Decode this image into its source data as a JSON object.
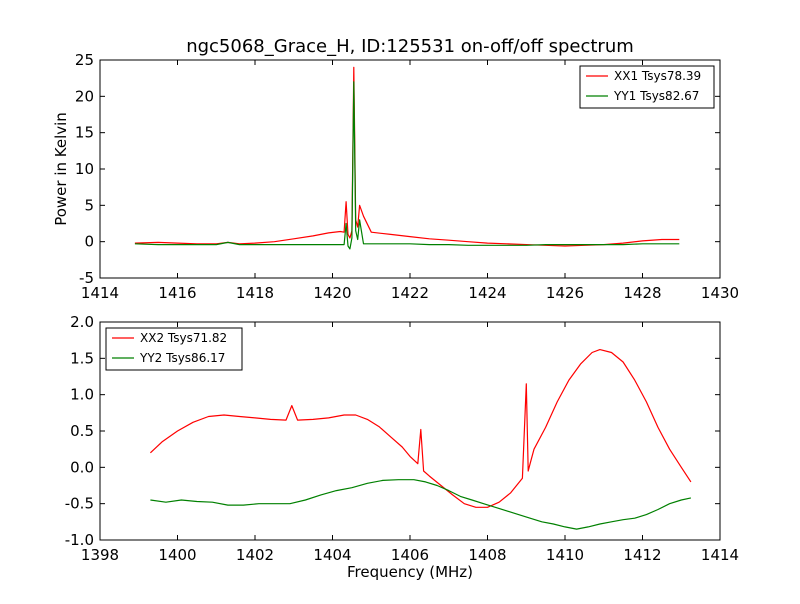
{
  "chart_data": [
    {
      "type": "line",
      "title": "ngc5068_Grace_H, ID:125531 on-off/off spectrum",
      "xlabel": "",
      "ylabel": "Power in Kelvin",
      "xlim": [
        1414,
        1430
      ],
      "ylim": [
        -5,
        25
      ],
      "xticks": [
        1414,
        1416,
        1418,
        1420,
        1422,
        1424,
        1426,
        1428,
        1430
      ],
      "yticks": [
        -5,
        0,
        5,
        10,
        15,
        20,
        25
      ],
      "legend_position": "top-right",
      "grid": false,
      "series": [
        {
          "name": "XX1 Tsys78.39",
          "color": "#ff0000",
          "x": [
            1414.9,
            1415.5,
            1416.0,
            1416.5,
            1417.0,
            1417.3,
            1417.6,
            1418.0,
            1418.5,
            1419.0,
            1419.5,
            1419.9,
            1420.2,
            1420.3,
            1420.35,
            1420.4,
            1420.45,
            1420.5,
            1420.55,
            1420.6,
            1420.65,
            1420.7,
            1420.8,
            1421.0,
            1421.5,
            1422.0,
            1422.5,
            1423.0,
            1423.5,
            1424.0,
            1424.5,
            1425.0,
            1425.5,
            1426.0,
            1426.5,
            1427.0,
            1427.5,
            1428.0,
            1428.5,
            1428.95
          ],
          "y": [
            -0.2,
            -0.1,
            -0.2,
            -0.3,
            -0.3,
            -0.1,
            -0.3,
            -0.2,
            0.0,
            0.4,
            0.8,
            1.2,
            1.4,
            1.3,
            5.5,
            1.0,
            0.5,
            1.5,
            24.0,
            3.0,
            2.0,
            5.0,
            3.5,
            1.3,
            1.0,
            0.7,
            0.4,
            0.2,
            0.0,
            -0.2,
            -0.3,
            -0.4,
            -0.5,
            -0.6,
            -0.5,
            -0.4,
            -0.2,
            0.1,
            0.3,
            0.3
          ]
        },
        {
          "name": "YY1 Tsys82.67",
          "color": "#008000",
          "x": [
            1414.9,
            1415.5,
            1416.0,
            1416.5,
            1417.0,
            1417.3,
            1417.6,
            1418.0,
            1418.5,
            1419.0,
            1419.5,
            1420.0,
            1420.3,
            1420.35,
            1420.4,
            1420.45,
            1420.5,
            1420.55,
            1420.6,
            1420.65,
            1420.7,
            1420.8,
            1421.0,
            1421.5,
            1422.0,
            1422.5,
            1423.0,
            1423.5,
            1424.0,
            1424.5,
            1425.0,
            1425.5,
            1426.0,
            1426.5,
            1427.0,
            1427.5,
            1428.0,
            1428.5,
            1428.95
          ],
          "y": [
            -0.3,
            -0.4,
            -0.4,
            -0.4,
            -0.4,
            -0.1,
            -0.4,
            -0.4,
            -0.4,
            -0.4,
            -0.4,
            -0.4,
            -0.4,
            2.5,
            -0.6,
            -1.0,
            0.5,
            22.0,
            1.5,
            0.3,
            3.0,
            -0.3,
            -0.3,
            -0.3,
            -0.3,
            -0.4,
            -0.4,
            -0.5,
            -0.5,
            -0.5,
            -0.5,
            -0.4,
            -0.4,
            -0.4,
            -0.4,
            -0.4,
            -0.3,
            -0.3,
            -0.3
          ]
        }
      ]
    },
    {
      "type": "line",
      "title": "",
      "xlabel": "Frequency (MHz)",
      "ylabel": "",
      "xlim": [
        1398,
        1414
      ],
      "ylim": [
        -1.0,
        2.0
      ],
      "xticks": [
        1398,
        1400,
        1402,
        1404,
        1406,
        1408,
        1410,
        1412,
        1414
      ],
      "yticks": [
        -1.0,
        -0.5,
        0.0,
        0.5,
        1.0,
        1.5,
        2.0
      ],
      "legend_position": "top-left",
      "grid": false,
      "series": [
        {
          "name": "XX2 Tsys71.82",
          "color": "#ff0000",
          "x": [
            1399.3,
            1399.6,
            1400.0,
            1400.4,
            1400.8,
            1401.2,
            1401.6,
            1402.0,
            1402.4,
            1402.8,
            1402.95,
            1403.1,
            1403.5,
            1403.9,
            1404.3,
            1404.6,
            1404.9,
            1405.2,
            1405.5,
            1405.8,
            1406.0,
            1406.2,
            1406.28,
            1406.35,
            1406.5,
            1406.8,
            1407.1,
            1407.4,
            1407.7,
            1408.0,
            1408.3,
            1408.6,
            1408.9,
            1409.0,
            1409.05,
            1409.1,
            1409.2,
            1409.5,
            1409.8,
            1410.1,
            1410.4,
            1410.7,
            1410.9,
            1411.2,
            1411.5,
            1411.8,
            1412.1,
            1412.4,
            1412.7,
            1413.0,
            1413.25
          ],
          "y": [
            0.2,
            0.35,
            0.5,
            0.62,
            0.7,
            0.72,
            0.7,
            0.68,
            0.66,
            0.65,
            0.85,
            0.65,
            0.66,
            0.68,
            0.72,
            0.72,
            0.66,
            0.56,
            0.42,
            0.28,
            0.15,
            0.05,
            0.52,
            -0.05,
            -0.12,
            -0.25,
            -0.38,
            -0.5,
            -0.55,
            -0.55,
            -0.48,
            -0.35,
            -0.15,
            1.15,
            -0.05,
            0.05,
            0.25,
            0.55,
            0.9,
            1.2,
            1.42,
            1.58,
            1.62,
            1.58,
            1.45,
            1.2,
            0.9,
            0.55,
            0.25,
            0.0,
            -0.2
          ]
        },
        {
          "name": "YY2 Tsys86.17",
          "color": "#008000",
          "x": [
            1399.3,
            1399.7,
            1400.1,
            1400.5,
            1400.9,
            1401.3,
            1401.7,
            1402.1,
            1402.5,
            1402.9,
            1403.3,
            1403.7,
            1404.1,
            1404.5,
            1404.9,
            1405.3,
            1405.7,
            1406.1,
            1406.4,
            1406.7,
            1407.0,
            1407.3,
            1407.6,
            1407.9,
            1408.2,
            1408.5,
            1408.8,
            1409.1,
            1409.4,
            1409.7,
            1410.0,
            1410.3,
            1410.6,
            1410.9,
            1411.2,
            1411.5,
            1411.8,
            1412.1,
            1412.4,
            1412.7,
            1413.0,
            1413.25
          ],
          "y": [
            -0.45,
            -0.48,
            -0.45,
            -0.47,
            -0.48,
            -0.52,
            -0.52,
            -0.5,
            -0.5,
            -0.5,
            -0.45,
            -0.38,
            -0.32,
            -0.28,
            -0.22,
            -0.18,
            -0.17,
            -0.17,
            -0.2,
            -0.25,
            -0.32,
            -0.4,
            -0.45,
            -0.5,
            -0.55,
            -0.6,
            -0.65,
            -0.7,
            -0.75,
            -0.78,
            -0.82,
            -0.85,
            -0.82,
            -0.78,
            -0.75,
            -0.72,
            -0.7,
            -0.65,
            -0.58,
            -0.5,
            -0.45,
            -0.42
          ]
        }
      ]
    }
  ]
}
